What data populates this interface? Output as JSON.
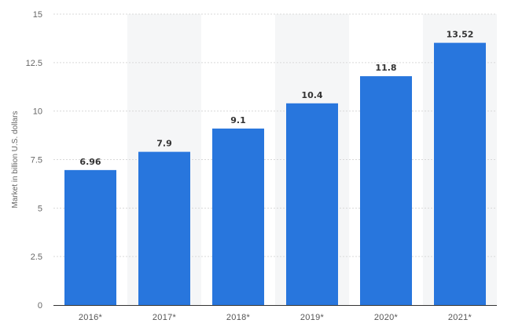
{
  "chart_data": {
    "type": "bar",
    "categories": [
      "2016*",
      "2017*",
      "2018*",
      "2019*",
      "2020*",
      "2021*"
    ],
    "values": [
      6.96,
      7.9,
      9.1,
      10.4,
      11.8,
      13.52
    ],
    "value_labels": [
      "6.96",
      "7.9",
      "9.1",
      "10.4",
      "11.8",
      "13.52"
    ],
    "ylabel": "Market in billion U.S. dollars",
    "xlabel": "",
    "ylim": [
      0,
      15
    ],
    "yticks": [
      0,
      2.5,
      5,
      7.5,
      10,
      12.5,
      15
    ],
    "ytick_labels": [
      "0",
      "2.5",
      "5",
      "7.5",
      "10",
      "12.5",
      "15"
    ],
    "grid": true,
    "alternating_column_shading": true,
    "colors": {
      "bar": "#2876dd",
      "band": "#f5f6f7",
      "grid": "#d9d9d9",
      "axis": "#333333"
    }
  }
}
